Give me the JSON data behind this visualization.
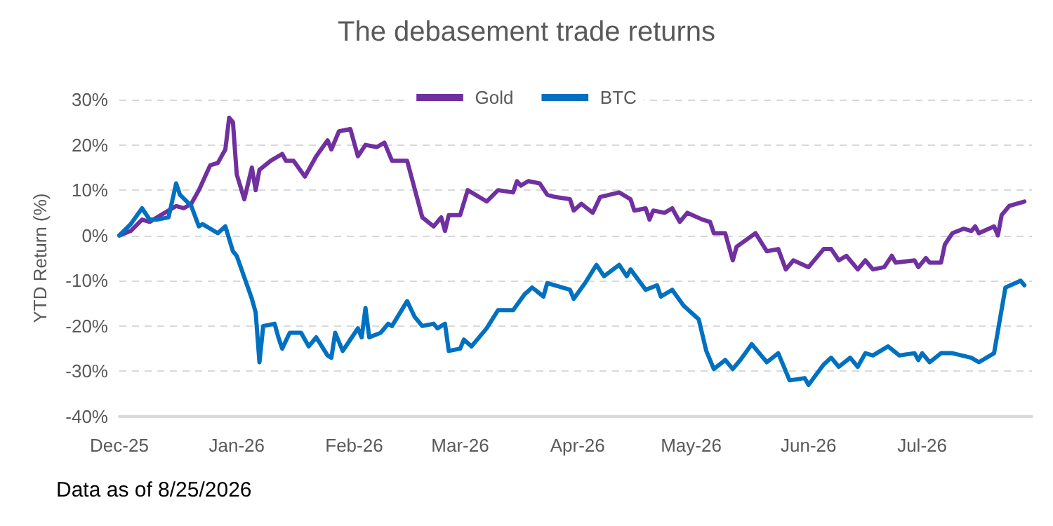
{
  "chart_data": {
    "type": "line",
    "title": "The debasement trade returns",
    "ylabel": "YTD Return (%)",
    "annotations": [
      "Data as of 8/25/2026"
    ],
    "legend": "top",
    "grid": "y",
    "line_style": "solid",
    "marker": "none",
    "xlim": [
      "2025-12-01",
      "2026-07-30"
    ],
    "xticks": [
      {
        "value": "2025-12-01",
        "label": "Dec-25"
      },
      {
        "value": "2026-01-01",
        "label": "Jan-26"
      },
      {
        "value": "2026-02-01",
        "label": "Feb-26"
      },
      {
        "value": "2026-03-01",
        "label": "Mar-26"
      },
      {
        "value": "2026-04-01",
        "label": "Apr-26"
      },
      {
        "value": "2026-05-01",
        "label": "May-26"
      },
      {
        "value": "2026-06-01",
        "label": "Jun-26"
      },
      {
        "value": "2026-07-01",
        "label": "Jul-26"
      }
    ],
    "ylim": [
      -40,
      30
    ],
    "yticks": [
      {
        "value": -40,
        "label": "-40%"
      },
      {
        "value": -30,
        "label": "-30%"
      },
      {
        "value": -20,
        "label": "-20%"
      },
      {
        "value": -10,
        "label": "-10%"
      },
      {
        "value": 0,
        "label": "0%"
      },
      {
        "value": 10,
        "label": "10%"
      },
      {
        "value": 20,
        "label": "20%"
      },
      {
        "value": 30,
        "label": "30%"
      }
    ],
    "series": [
      {
        "name": "Gold",
        "color": "#7030a0",
        "x": [
          "2025-12-01",
          "2025-12-04",
          "2025-12-07",
          "2025-12-09",
          "2025-12-13",
          "2025-12-16",
          "2025-12-18",
          "2025-12-20",
          "2025-12-22",
          "2025-12-25",
          "2025-12-27",
          "2025-12-29",
          "2025-12-30",
          "2025-12-31",
          "2026-01-01",
          "2026-01-03",
          "2026-01-05",
          "2026-01-06",
          "2026-01-07",
          "2026-01-10",
          "2026-01-13",
          "2026-01-14",
          "2026-01-16",
          "2026-01-19",
          "2026-01-22",
          "2026-01-25",
          "2026-01-26",
          "2026-01-28",
          "2026-01-31",
          "2026-02-02",
          "2026-02-04",
          "2026-02-07",
          "2026-02-09",
          "2026-02-11",
          "2026-02-15",
          "2026-02-19",
          "2026-02-22",
          "2026-02-24",
          "2026-02-25",
          "2026-02-26",
          "2026-03-01",
          "2026-03-03",
          "2026-03-08",
          "2026-03-11",
          "2026-03-15",
          "2026-03-16",
          "2026-03-17",
          "2026-03-19",
          "2026-03-22",
          "2026-03-24",
          "2026-03-26",
          "2026-03-30",
          "2026-03-31",
          "2026-04-02",
          "2026-04-05",
          "2026-04-07",
          "2026-04-12",
          "2026-04-15",
          "2026-04-16",
          "2026-04-19",
          "2026-04-20",
          "2026-04-21",
          "2026-04-24",
          "2026-04-26",
          "2026-04-28",
          "2026-04-30",
          "2026-05-04",
          "2026-05-06",
          "2026-05-07",
          "2026-05-10",
          "2026-05-12",
          "2026-05-13",
          "2026-05-18",
          "2026-05-21",
          "2026-05-24",
          "2026-05-26",
          "2026-05-28",
          "2026-06-01",
          "2026-06-05",
          "2026-06-07",
          "2026-06-09",
          "2026-06-11",
          "2026-06-14",
          "2026-06-16",
          "2026-06-18",
          "2026-06-21",
          "2026-06-23",
          "2026-06-24",
          "2026-06-29",
          "2026-06-30",
          "2026-07-02",
          "2026-07-03",
          "2026-07-06",
          "2026-07-07",
          "2026-07-09",
          "2026-07-12",
          "2026-07-14",
          "2026-07-15",
          "2026-07-16",
          "2026-07-20",
          "2026-07-21",
          "2026-07-22",
          "2026-07-24",
          "2026-07-28"
        ],
        "values": [
          0,
          1,
          3.5,
          3,
          5,
          6.5,
          6,
          7,
          10,
          15.5,
          16,
          19,
          26,
          25,
          13.5,
          8,
          15,
          10,
          14.5,
          16.5,
          18,
          16.5,
          16.5,
          13,
          17.5,
          21,
          19,
          23,
          23.5,
          17.5,
          20,
          19.5,
          20.5,
          16.5,
          16.5,
          4,
          2,
          4,
          1,
          4.5,
          4.5,
          10,
          7.5,
          10,
          9.5,
          12,
          11,
          12,
          11.5,
          9,
          8.5,
          8,
          5.5,
          7,
          5,
          8.5,
          9.5,
          8,
          5.5,
          6,
          3.5,
          5.5,
          5,
          6,
          3,
          5,
          3.5,
          3,
          0.5,
          0.5,
          -5.5,
          -2.5,
          0.5,
          -3.5,
          -3,
          -7.5,
          -5.5,
          -7,
          -3,
          -3,
          -5.5,
          -4.5,
          -7.5,
          -5.5,
          -7.5,
          -7,
          -4.5,
          -6,
          -5.5,
          -7,
          -5,
          -6,
          -6,
          -2,
          0.5,
          1.5,
          1,
          2,
          0.5,
          2,
          0,
          4.5,
          6.5,
          7.5
        ]
      },
      {
        "name": "BTC",
        "color": "#0070c0",
        "x": [
          "2025-12-01",
          "2025-12-04",
          "2025-12-07",
          "2025-12-09",
          "2025-12-11",
          "2025-12-14",
          "2025-12-16",
          "2025-12-17",
          "2025-12-20",
          "2025-12-22",
          "2025-12-23",
          "2025-12-27",
          "2025-12-29",
          "2025-12-31",
          "2026-01-01",
          "2026-01-05",
          "2026-01-06",
          "2026-01-07",
          "2026-01-08",
          "2026-01-11",
          "2026-01-12",
          "2026-01-13",
          "2026-01-15",
          "2026-01-18",
          "2026-01-20",
          "2026-01-22",
          "2026-01-25",
          "2026-01-26",
          "2026-01-27",
          "2026-01-29",
          "2026-01-31",
          "2026-02-02",
          "2026-02-03",
          "2026-02-04",
          "2026-02-05",
          "2026-02-08",
          "2026-02-10",
          "2026-02-11",
          "2026-02-15",
          "2026-02-17",
          "2026-02-19",
          "2026-02-22",
          "2026-02-23",
          "2026-02-25",
          "2026-02-26",
          "2026-03-01",
          "2026-03-02",
          "2026-03-04",
          "2026-03-08",
          "2026-03-11",
          "2026-03-15",
          "2026-03-18",
          "2026-03-20",
          "2026-03-23",
          "2026-03-24",
          "2026-03-30",
          "2026-03-31",
          "2026-04-03",
          "2026-04-06",
          "2026-04-08",
          "2026-04-12",
          "2026-04-14",
          "2026-04-15",
          "2026-04-19",
          "2026-04-22",
          "2026-04-23",
          "2026-04-26",
          "2026-04-29",
          "2026-05-01",
          "2026-05-03",
          "2026-05-05",
          "2026-05-07",
          "2026-05-10",
          "2026-05-12",
          "2026-05-14",
          "2026-05-17",
          "2026-05-21",
          "2026-05-24",
          "2026-05-27",
          "2026-05-31",
          "2026-06-01",
          "2026-06-05",
          "2026-06-07",
          "2026-06-09",
          "2026-06-12",
          "2026-06-14",
          "2026-06-16",
          "2026-06-18",
          "2026-06-22",
          "2026-06-25",
          "2026-06-29",
          "2026-06-30",
          "2026-07-01",
          "2026-07-03",
          "2026-07-06",
          "2026-07-09",
          "2026-07-14",
          "2026-07-16",
          "2026-07-20",
          "2026-07-23",
          "2026-07-27",
          "2026-07-28"
        ],
        "values": [
          0,
          2.5,
          6,
          3.5,
          3.5,
          4,
          11.5,
          9,
          6.5,
          2,
          2.5,
          0.5,
          2,
          -3.5,
          -4.5,
          -14,
          -17,
          -28,
          -20,
          -19.5,
          -22.5,
          -25,
          -21.5,
          -21.5,
          -24.5,
          -22.5,
          -26.5,
          -27,
          -21.5,
          -25.5,
          -23,
          -20.5,
          -22.5,
          -16,
          -22.5,
          -21.5,
          -19.5,
          -20,
          -14.5,
          -18,
          -20,
          -19.5,
          -20.5,
          -19.5,
          -25.5,
          -25,
          -23,
          -24.5,
          -20.5,
          -16.5,
          -16.5,
          -13,
          -11.5,
          -13.5,
          -10.5,
          -12,
          -14,
          -10.5,
          -6.5,
          -9,
          -6.5,
          -9,
          -7.5,
          -12,
          -11,
          -13.5,
          -12,
          -15.5,
          -17,
          -18.5,
          -25.5,
          -29.5,
          -27.5,
          -29.5,
          -27.5,
          -24,
          -28,
          -26,
          -32,
          -31.5,
          -33,
          -28.5,
          -27,
          -29,
          -27,
          -29,
          -26,
          -26.5,
          -24.5,
          -26.5,
          -26,
          -27.5,
          -26,
          -28,
          -26,
          -26,
          -27,
          -28,
          -26,
          -11.5,
          -10,
          -11
        ]
      }
    ]
  }
}
